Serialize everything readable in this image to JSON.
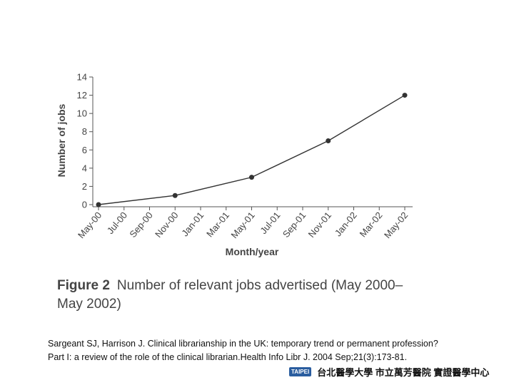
{
  "chart_data": {
    "type": "line",
    "xlabel": "Month/year",
    "ylabel": "Number of jobs",
    "categories": [
      "May-00",
      "Jul-00",
      "Sep-00",
      "Nov-00",
      "Jan-01",
      "Mar-01",
      "May-01",
      "Jul-01",
      "Sep-01",
      "Nov-01",
      "Jan-02",
      "Mar-02",
      "May-02"
    ],
    "x": [
      "May-00",
      "Nov-00",
      "May-01",
      "Nov-01",
      "May-02"
    ],
    "values": [
      0,
      1,
      3,
      7,
      12
    ],
    "color": "#333333",
    "ylim": [
      0,
      14
    ],
    "yticks": [
      0,
      2,
      4,
      6,
      8,
      10,
      12,
      14
    ],
    "grid": false
  },
  "caption": {
    "label": "Figure 2",
    "lines": [
      "Number of relevant jobs advertised (May 2000–",
      "May 2002)"
    ]
  },
  "citation": [
    "Sargeant SJ, Harrison J. Clinical librarianship in the UK: temporary trend or permanent profession?",
    "Part I: a review of the role of the clinical librarian.Health Info Libr J. 2004 Sep;21(3):173-81."
  ],
  "footer": {
    "logo": "TAIPEI",
    "text": "台北醫學大學 市立萬芳醫院 實證醫學中心"
  }
}
